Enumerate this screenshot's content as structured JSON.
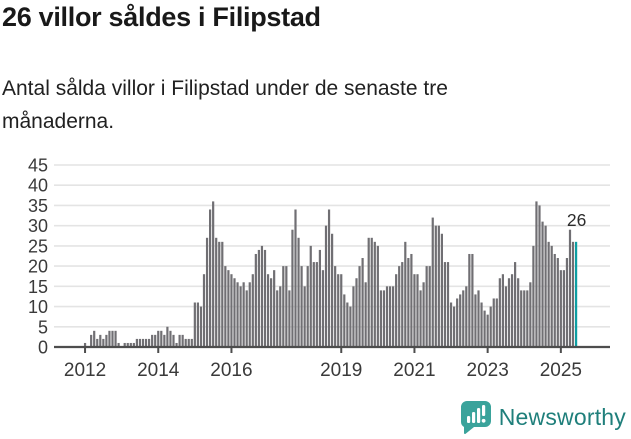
{
  "header": {
    "title": "26 villor såldes i Filipstad",
    "subtitle": "Antal sålda villor i Filipstad under de senaste tre månaderna."
  },
  "chart_data": {
    "type": "bar",
    "title": "26 villor såldes i Filipstad",
    "xlabel": "",
    "ylabel": "",
    "ylim": [
      0,
      45
    ],
    "yticks": [
      0,
      5,
      10,
      15,
      20,
      25,
      30,
      35,
      40,
      45
    ],
    "year_tick_labels": [
      "2012",
      "2014",
      "2016",
      "2019",
      "2021",
      "2023",
      "2025"
    ],
    "grid": "horizontal",
    "legend": "none",
    "start_month": "2011-04",
    "values": [
      0,
      0,
      0,
      0,
      0,
      0,
      0,
      0,
      0,
      1,
      0,
      3,
      4,
      2,
      3,
      2,
      3,
      4,
      4,
      4,
      1,
      0,
      1,
      1,
      1,
      1,
      2,
      2,
      2,
      2,
      2,
      3,
      3,
      4,
      4,
      3,
      5,
      4,
      3,
      1,
      3,
      3,
      2,
      2,
      2,
      11,
      11,
      10,
      18,
      27,
      34,
      36,
      27,
      26,
      26,
      20,
      19,
      18,
      17,
      16,
      15,
      16,
      14,
      16,
      18,
      23,
      24,
      25,
      24,
      18,
      17,
      19,
      14,
      15,
      20,
      20,
      14,
      29,
      34,
      27,
      20,
      15,
      20,
      25,
      21,
      21,
      24,
      19,
      30,
      34,
      28,
      20,
      18,
      18,
      13,
      11,
      10,
      15,
      17,
      20,
      22,
      16,
      27,
      27,
      26,
      25,
      14,
      14,
      15,
      15,
      15,
      18,
      20,
      21,
      26,
      22,
      23,
      18,
      18,
      14,
      16,
      20,
      20,
      32,
      30,
      30,
      28,
      21,
      21,
      11,
      10,
      12,
      13,
      14,
      15,
      23,
      23,
      13,
      14,
      11,
      9,
      8,
      10,
      12,
      12,
      17,
      18,
      15,
      17,
      18,
      21,
      17,
      14,
      14,
      14,
      16,
      25,
      36,
      35,
      31,
      30,
      26,
      25,
      23,
      22,
      19,
      19,
      22,
      29,
      26,
      26
    ],
    "highlight": {
      "position": "last",
      "value": 26,
      "label": "26"
    },
    "bar_color": "#706f73",
    "highlight_color": "#0d9fa3",
    "gridline_color": "#e4e4e4",
    "axis_color": "#4d4d4d",
    "tick_label_color": "#3a3a3a",
    "value_label_color": "#2b2b2b"
  },
  "footer": {
    "brand": "Newsworthy",
    "logo_icon": "bar-chart-speech-bubble",
    "logo_teal": "#3aa39b",
    "text_teal": "#1f7f7b"
  }
}
